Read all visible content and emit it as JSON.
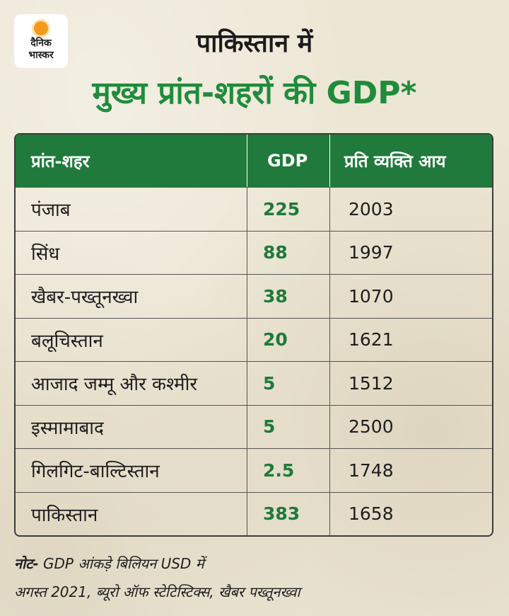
{
  "brand": {
    "logo_line1": "दैनिक",
    "logo_line2": "भास्कर",
    "accent_color": "#f39a1c"
  },
  "title": {
    "line1": "पाकिस्तान में",
    "line2": "मुख्य प्रांत-शहरों की GDP*",
    "line2_color": "#1f8c3c"
  },
  "table": {
    "header_color": "#1f7a3b",
    "columns": [
      "प्रांत-शहर",
      "GDP",
      "प्रति व्यक्ति आय"
    ],
    "rows": [
      {
        "region": "पंजाब",
        "gdp": "225",
        "per_capita": "2003"
      },
      {
        "region": "सिंध",
        "gdp": "88",
        "per_capita": "1997"
      },
      {
        "region": "खैबर-पख्तूनख्वा",
        "gdp": "38",
        "per_capita": "1070"
      },
      {
        "region": "बलूचिस्तान",
        "gdp": "20",
        "per_capita": "1621"
      },
      {
        "region": "आजाद जम्मू और कश्मीर",
        "gdp": "5",
        "per_capita": "1512"
      },
      {
        "region": "इस्मामाबाद",
        "gdp": "5",
        "per_capita": "2500"
      },
      {
        "region": "गिलगिट-बाल्टिस्तान",
        "gdp": "2.5",
        "per_capita": "1748"
      },
      {
        "region": "पाकिस्तान",
        "gdp": "383",
        "per_capita": "1658"
      }
    ]
  },
  "notes": {
    "label": "नोट-",
    "line1": " GDP आंकड़े बिलियन USD में",
    "line2": "अगस्त 2021, ब्यूरो ऑफ स्टेटिस्टिक्स, खैबर पख्तूनख्वा"
  }
}
